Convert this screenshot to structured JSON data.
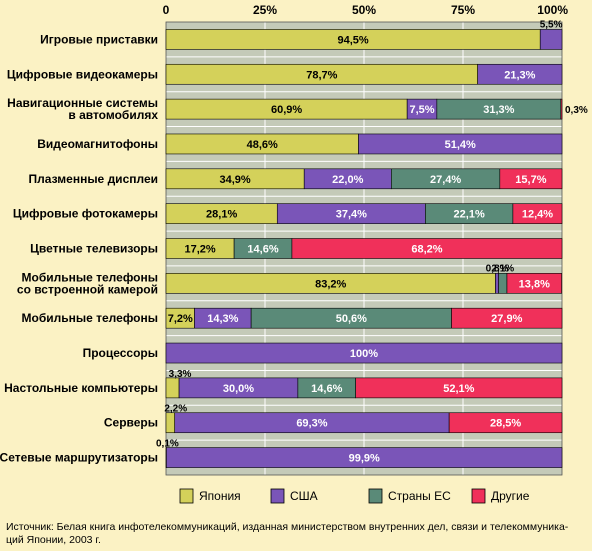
{
  "chart_data": {
    "type": "bar",
    "stacked": true,
    "orientation": "horizontal",
    "xlim": [
      0,
      100
    ],
    "x_ticks": [
      "0",
      "25%",
      "50%",
      "75%",
      "100%"
    ],
    "grid": true,
    "legend_position": "bottom",
    "categories": [
      "Игровые приставки",
      "Цифровые видеокамеры",
      "Навигационные системы\nв автомобилях",
      "Видеомагнитофоны",
      "Плазменные дисплеи",
      "Цифровые фотокамеры",
      "Цветные телевизоры",
      "Мобильные телефоны\nсо встроенной камерой",
      "Мобильные телефоны",
      "Процессоры",
      "Настольные компьютеры",
      "Серверы",
      "Сетевые маршрутизаторы"
    ],
    "series": [
      {
        "name": "Япония",
        "color": "#d4d15a",
        "values": [
          94.5,
          78.7,
          60.9,
          48.6,
          34.9,
          28.1,
          17.2,
          83.2,
          7.2,
          0,
          3.3,
          2.2,
          0.1
        ],
        "labels": [
          "94,5%",
          "78,7%",
          "60,9%",
          "48,6%",
          "34,9%",
          "28,1%",
          "17,2%",
          "83,2%",
          "7,2%",
          "",
          "3,3%",
          "2,2%",
          "0,1%"
        ]
      },
      {
        "name": "США",
        "color": "#7a55b8",
        "values": [
          5.5,
          21.3,
          7.5,
          51.4,
          22.0,
          37.4,
          0,
          0.8,
          14.3,
          100,
          30.0,
          69.3,
          99.9
        ],
        "labels": [
          "5,5%",
          "21,3%",
          "7,5%",
          "51,4%",
          "22,0%",
          "37,4%",
          "",
          "0,8%",
          "14,3%",
          "100%",
          "30,0%",
          "69,3%",
          "99,9%"
        ]
      },
      {
        "name": "Страны ЕС",
        "color": "#5a8a78",
        "values": [
          0,
          0,
          31.3,
          0,
          27.4,
          22.1,
          14.6,
          2.1,
          50.6,
          0,
          14.6,
          0,
          0
        ],
        "labels": [
          "",
          "",
          "31,3%",
          "",
          "27,4%",
          "22,1%",
          "14,6%",
          "2,1%",
          "50,6%",
          "",
          "14,6%",
          "",
          ""
        ]
      },
      {
        "name": "Другие",
        "color": "#f0305a",
        "values": [
          0,
          0,
          0.3,
          0,
          15.7,
          12.4,
          68.2,
          13.8,
          27.9,
          0,
          52.1,
          28.5,
          0
        ],
        "labels": [
          "",
          "",
          "0,3%",
          "",
          "15,7%",
          "12,4%",
          "68,2%",
          "13,8%",
          "27,9%",
          "",
          "52,1%",
          "28,5%",
          ""
        ]
      }
    ]
  },
  "source_note": "Источник: Белая книга инфотелекоммуникаций, изданная министерством внутренних дел, связи и телекоммуника-\nций Японии, 2003 г."
}
